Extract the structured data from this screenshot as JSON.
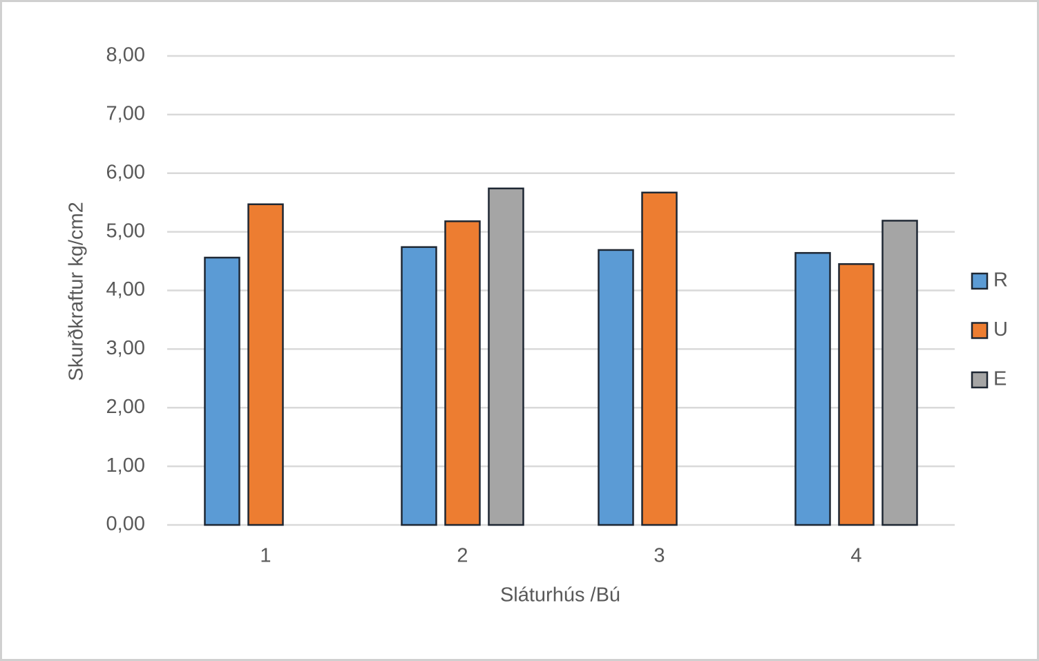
{
  "chart_data": {
    "type": "bar",
    "y_label": "Skurðkraftur kg/cm2",
    "x_label": "Sláturhús /Bú",
    "categories": [
      "1",
      "2",
      "3",
      "4"
    ],
    "series": [
      {
        "name": "R",
        "color": "#5b9bd5",
        "values": [
          4.56,
          4.74,
          4.69,
          4.64
        ]
      },
      {
        "name": "U",
        "color": "#ed7d31",
        "values": [
          5.47,
          5.18,
          5.67,
          4.45
        ]
      },
      {
        "name": "E",
        "color": "#a5a5a5",
        "values": [
          null,
          5.74,
          null,
          5.19
        ]
      }
    ],
    "ylim": [
      0,
      8
    ],
    "yticks": [
      {
        "value": 0,
        "label": "0,00"
      },
      {
        "value": 1,
        "label": "1,00"
      },
      {
        "value": 2,
        "label": "2,00"
      },
      {
        "value": 3,
        "label": "3,00"
      },
      {
        "value": 4,
        "label": "4,00"
      },
      {
        "value": 5,
        "label": "5,00"
      },
      {
        "value": 6,
        "label": "6,00"
      },
      {
        "value": 7,
        "label": "7,00"
      },
      {
        "value": 8,
        "label": "8,00"
      }
    ],
    "grid": true,
    "legend": "right"
  }
}
